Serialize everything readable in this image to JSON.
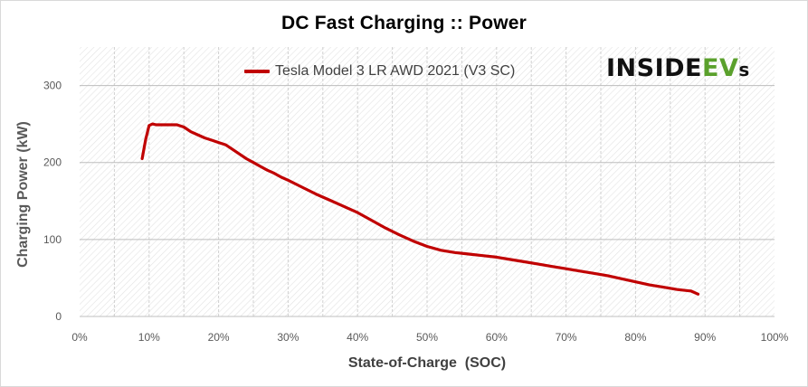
{
  "chart_data": {
    "type": "line",
    "title": "DC Fast Charging :: Power",
    "xlabel": "State-of-Charge  (SOC)",
    "ylabel": "Charging Power (kW)",
    "xlim": [
      0,
      100
    ],
    "ylim": [
      0,
      350
    ],
    "x_ticks": [
      0,
      10,
      20,
      30,
      40,
      50,
      60,
      70,
      80,
      90,
      100
    ],
    "x_tick_labels": [
      "0%",
      "10%",
      "20%",
      "30%",
      "40%",
      "50%",
      "60%",
      "70%",
      "80%",
      "90%",
      "100%"
    ],
    "y_ticks": [
      0,
      100,
      200,
      300
    ],
    "y_tick_labels": [
      "0",
      "100",
      "200",
      "300"
    ],
    "grid": true,
    "legend_position": "top-center",
    "series": [
      {
        "name": "Tesla Model 3 LR AWD 2021 (V3 SC)",
        "color": "#c00000",
        "x": [
          9,
          9.5,
          10,
          10.5,
          11,
          12,
          13,
          14,
          15,
          16,
          17,
          18,
          19,
          20,
          21,
          22,
          23,
          24,
          25,
          26,
          27,
          28,
          29,
          30,
          32,
          34,
          36,
          38,
          40,
          42,
          44,
          46,
          48,
          50,
          52,
          54,
          56,
          58,
          60,
          62,
          64,
          66,
          68,
          70,
          72,
          74,
          76,
          78,
          80,
          82,
          84,
          86,
          88,
          89
        ],
        "y": [
          205,
          230,
          248,
          250,
          249,
          249,
          249,
          249,
          246,
          240,
          236,
          232,
          229,
          226,
          223,
          217,
          211,
          205,
          200,
          195,
          190,
          186,
          181,
          177,
          168,
          159,
          151,
          143,
          135,
          125,
          115,
          106,
          98,
          91,
          86,
          83,
          81,
          79,
          77,
          74,
          71,
          68,
          65,
          62,
          59,
          56,
          53,
          49,
          45,
          41,
          38,
          35,
          33,
          29
        ]
      }
    ]
  },
  "logo": {
    "part1": "INSIDE",
    "part2": "EV",
    "part3": "s"
  }
}
